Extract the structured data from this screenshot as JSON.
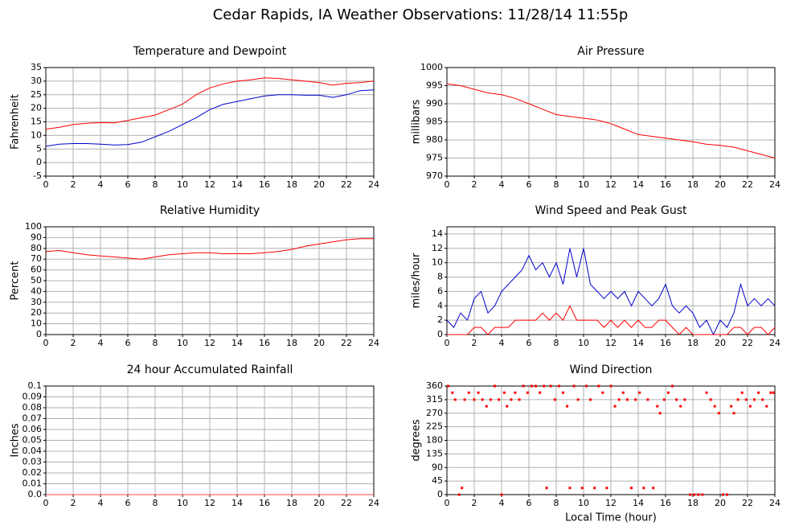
{
  "title": "Cedar Rapids, IA Weather Observations: 11/28/14 11:55p",
  "chart_data": [
    {
      "type": "line",
      "title": "Temperature and Dewpoint",
      "ylabel": "Fahrenheit",
      "x": [
        0,
        1,
        2,
        3,
        4,
        5,
        6,
        7,
        8,
        9,
        10,
        11,
        12,
        13,
        14,
        15,
        16,
        17,
        18,
        19,
        20,
        21,
        22,
        23,
        24
      ],
      "series": [
        {
          "color": "#ff0000",
          "values": [
            12.3,
            13,
            14,
            14.5,
            14.7,
            14.6,
            15.5,
            16.5,
            17.5,
            19.5,
            21.5,
            25,
            27.5,
            29,
            30,
            30.5,
            31.2,
            31,
            30.5,
            30,
            29.5,
            28.5,
            29.2,
            29.5,
            30
          ]
        },
        {
          "color": "#0000cc",
          "values": [
            6,
            6.8,
            7,
            7,
            6.8,
            6.5,
            6.6,
            7.5,
            9.5,
            11.5,
            14,
            16.5,
            19.5,
            21.5,
            22.5,
            23.5,
            24.5,
            25,
            25,
            24.8,
            24.8,
            24,
            25,
            26.5,
            26.8
          ]
        }
      ],
      "xlim": [
        0,
        24
      ],
      "xticks": [
        0,
        2,
        4,
        6,
        8,
        10,
        12,
        14,
        16,
        18,
        20,
        22,
        24
      ],
      "ylim": [
        -5,
        35
      ],
      "yticks": [
        -5,
        0,
        5,
        10,
        15,
        20,
        25,
        30,
        35
      ],
      "grid": true
    },
    {
      "type": "line",
      "title": "Air Pressure",
      "ylabel": "millibars",
      "x": [
        0,
        1,
        2,
        3,
        4,
        5,
        6,
        7,
        8,
        9,
        10,
        11,
        12,
        13,
        14,
        15,
        16,
        17,
        18,
        19,
        20,
        21,
        22,
        23,
        24
      ],
      "series": [
        {
          "color": "#ff0000",
          "values": [
            995.5,
            995,
            994,
            993,
            992.5,
            991.5,
            990,
            988.5,
            987,
            986.5,
            986,
            985.5,
            984.5,
            983,
            981.5,
            981,
            980.5,
            980,
            979.5,
            978.8,
            978.5,
            978,
            977,
            976,
            975
          ]
        }
      ],
      "xlim": [
        0,
        24
      ],
      "xticks": [
        0,
        2,
        4,
        6,
        8,
        10,
        12,
        14,
        16,
        18,
        20,
        22,
        24
      ],
      "ylim": [
        970,
        1000
      ],
      "yticks": [
        970,
        975,
        980,
        985,
        990,
        995,
        1000
      ],
      "grid": true
    },
    {
      "type": "line",
      "title": "Relative Humidity",
      "ylabel": "Percent",
      "x": [
        0,
        1,
        2,
        3,
        4,
        5,
        6,
        7,
        8,
        9,
        10,
        11,
        12,
        13,
        14,
        15,
        16,
        17,
        18,
        19,
        20,
        21,
        22,
        23,
        24
      ],
      "series": [
        {
          "color": "#ff0000",
          "values": [
            77,
            78,
            76,
            74,
            73,
            72,
            71,
            70,
            72,
            74,
            75,
            76,
            76,
            75,
            75,
            75,
            76,
            77,
            79,
            82,
            84,
            86,
            88,
            89,
            89
          ]
        }
      ],
      "xlim": [
        0,
        24
      ],
      "xticks": [
        0,
        2,
        4,
        6,
        8,
        10,
        12,
        14,
        16,
        18,
        20,
        22,
        24
      ],
      "ylim": [
        0,
        100
      ],
      "yticks": [
        0,
        10,
        20,
        30,
        40,
        50,
        60,
        70,
        80,
        90,
        100
      ],
      "grid": true
    },
    {
      "type": "line",
      "title": "Wind Speed and Peak Gust",
      "ylabel": "miles/hour",
      "x": [
        0,
        0.5,
        1,
        1.5,
        2,
        2.5,
        3,
        3.5,
        4,
        4.5,
        5,
        5.5,
        6,
        6.5,
        7,
        7.5,
        8,
        8.5,
        9,
        9.5,
        10,
        10.5,
        11,
        11.5,
        12,
        12.5,
        13,
        13.5,
        14,
        14.5,
        15,
        15.5,
        16,
        16.5,
        17,
        17.5,
        18,
        18.5,
        19,
        19.5,
        20,
        20.5,
        21,
        21.5,
        22,
        22.5,
        23,
        23.5,
        24
      ],
      "series": [
        {
          "color": "#0000cc",
          "values": [
            2,
            1,
            3,
            2,
            5,
            6,
            3,
            4,
            6,
            7,
            8,
            9,
            11,
            9,
            10,
            8,
            10,
            7,
            12,
            8,
            12,
            7,
            6,
            5,
            6,
            5,
            6,
            4,
            6,
            5,
            4,
            5,
            7,
            4,
            3,
            4,
            3,
            1,
            2,
            0,
            2,
            1,
            3,
            7,
            4,
            5,
            4,
            5,
            4
          ]
        },
        {
          "color": "#ff0000",
          "values": [
            0,
            0,
            0,
            0,
            1,
            1,
            0,
            1,
            1,
            1,
            2,
            2,
            2,
            2,
            3,
            2,
            3,
            2,
            4,
            2,
            2,
            2,
            2,
            1,
            2,
            1,
            2,
            1,
            2,
            1,
            1,
            2,
            2,
            1,
            0,
            1,
            0,
            0,
            0,
            0,
            0,
            0,
            1,
            1,
            0,
            1,
            1,
            0,
            1
          ]
        }
      ],
      "xlim": [
        0,
        24
      ],
      "xticks": [
        0,
        2,
        4,
        6,
        8,
        10,
        12,
        14,
        16,
        18,
        20,
        22,
        24
      ],
      "ylim": [
        0,
        15
      ],
      "yticks": [
        0,
        2,
        4,
        6,
        8,
        10,
        12,
        14
      ],
      "grid": true
    },
    {
      "type": "line",
      "title": "24 hour Accumulated Rainfall",
      "ylabel": "Inches",
      "x": [
        0,
        1,
        2,
        3,
        4,
        5,
        6,
        7,
        8,
        9,
        10,
        11,
        12,
        13,
        14,
        15,
        16,
        17,
        18,
        19,
        20,
        21,
        22,
        23,
        24
      ],
      "series": [
        {
          "color": "#ff4444",
          "values": [
            0,
            0,
            0,
            0,
            0,
            0,
            0,
            0,
            0,
            0,
            0,
            0,
            0,
            0,
            0,
            0,
            0,
            0,
            0,
            0,
            0,
            0,
            0,
            0,
            0
          ]
        }
      ],
      "xlim": [
        0,
        24
      ],
      "xticks": [
        0,
        2,
        4,
        6,
        8,
        10,
        12,
        14,
        16,
        18,
        20,
        22,
        24
      ],
      "ylim": [
        0,
        0.1
      ],
      "yticks": [
        {
          "value": 0,
          "label": "0.0"
        },
        0.01,
        0.02,
        0.03,
        0.04,
        0.05,
        0.06,
        0.07,
        0.08,
        0.09,
        0.1
      ],
      "grid": true
    },
    {
      "type": "scatter",
      "title": "Wind Direction",
      "ylabel": "degrees",
      "xlabel": "Local Time (hour)",
      "color": "#ff0000",
      "x": [
        0.1,
        0.4,
        0.6,
        0.9,
        1.1,
        1.3,
        1.6,
        2,
        2.3,
        2.6,
        2.9,
        3.2,
        3.5,
        3.8,
        4,
        4.2,
        4.4,
        4.7,
        5,
        5.3,
        5.6,
        5.9,
        6.2,
        6.5,
        6.8,
        7.1,
        7.3,
        7.6,
        7.9,
        8.2,
        8.5,
        8.8,
        9,
        9.3,
        9.6,
        9.9,
        10.2,
        10.5,
        10.8,
        11.1,
        11.4,
        11.7,
        12,
        12.3,
        12.6,
        12.9,
        13.2,
        13.5,
        13.8,
        14.1,
        14.4,
        14.7,
        15.1,
        15.4,
        15.6,
        15.9,
        16.2,
        16.5,
        16.8,
        17.1,
        17.4,
        17.8,
        18.1,
        18.4,
        18.7,
        19,
        19.3,
        19.6,
        19.9,
        20.2,
        20.5,
        20.8,
        21,
        21.3,
        21.6,
        21.9,
        22.2,
        22.5,
        22.8,
        23.1,
        23.4,
        23.7,
        23.9
      ],
      "values": [
        360,
        338,
        315,
        0,
        22,
        315,
        338,
        315,
        338,
        315,
        293,
        315,
        360,
        315,
        0,
        338,
        293,
        315,
        338,
        315,
        360,
        338,
        360,
        360,
        338,
        360,
        22,
        360,
        315,
        360,
        338,
        293,
        22,
        360,
        315,
        22,
        360,
        315,
        22,
        360,
        338,
        22,
        360,
        293,
        315,
        338,
        315,
        22,
        315,
        338,
        22,
        315,
        22,
        293,
        270,
        315,
        338,
        360,
        315,
        293,
        315,
        0,
        0,
        0,
        0,
        338,
        315,
        293,
        270,
        0,
        0,
        293,
        270,
        315,
        338,
        315,
        293,
        315,
        338,
        315,
        293,
        338,
        338
      ],
      "xlim": [
        0,
        24
      ],
      "xticks": [
        0,
        2,
        4,
        6,
        8,
        10,
        12,
        14,
        16,
        18,
        20,
        22,
        24
      ],
      "ylim": [
        0,
        360
      ],
      "yticks": [
        0,
        45,
        90,
        135,
        180,
        225,
        270,
        315,
        360
      ],
      "grid": true
    }
  ]
}
